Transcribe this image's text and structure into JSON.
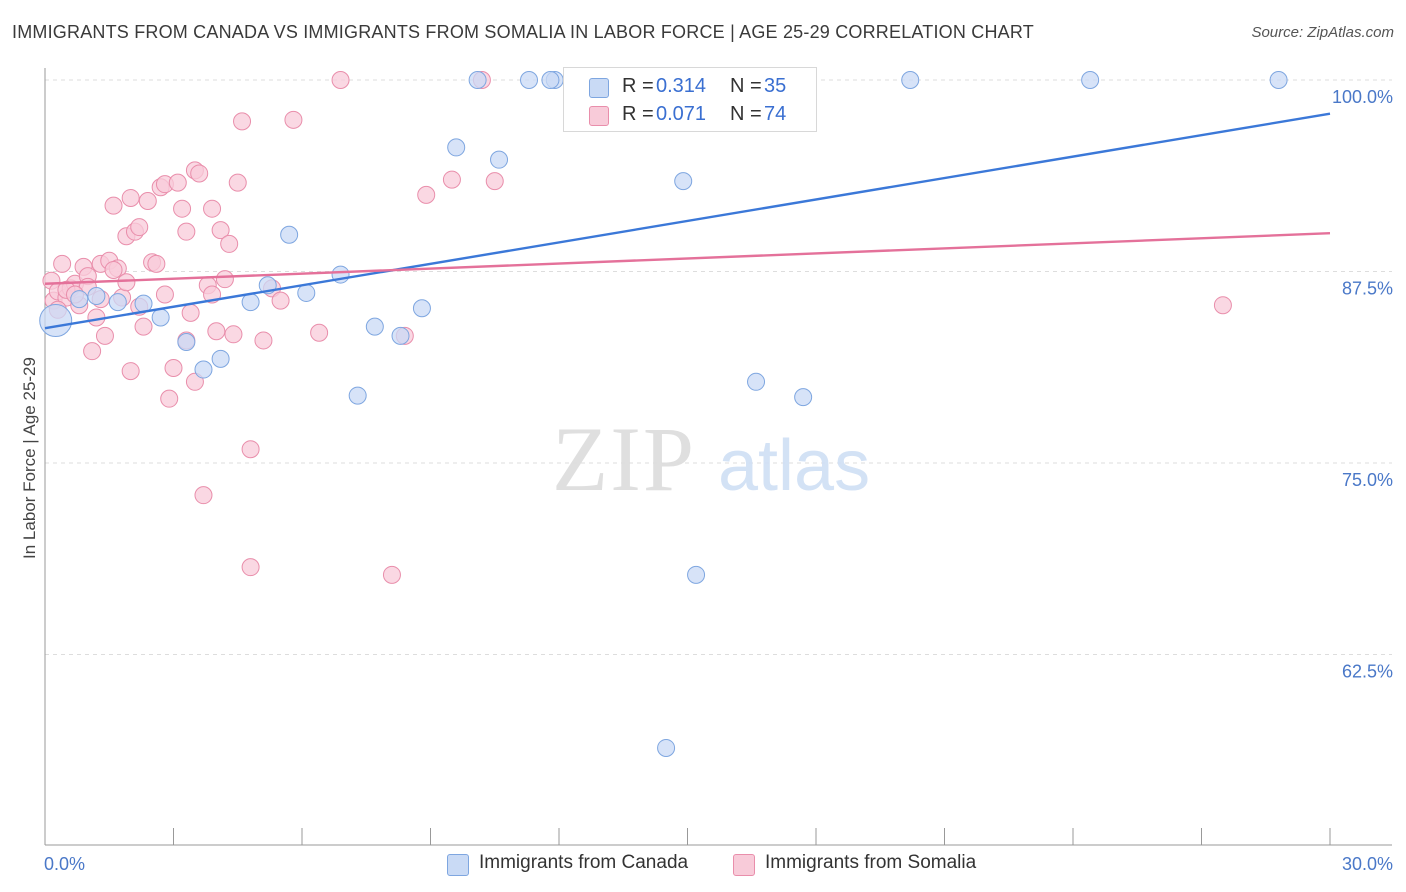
{
  "title": "IMMIGRANTS FROM CANADA VS IMMIGRANTS FROM SOMALIA IN LABOR FORCE | AGE 25-29 CORRELATION CHART",
  "source": "Source: ZipAtlas.com",
  "watermark": {
    "zip": "ZIP",
    "atlas": "atlas"
  },
  "legend": {
    "r_label": "R =",
    "n_label": "N =",
    "canada": {
      "r": "0.314",
      "n": "35"
    },
    "somalia": {
      "r": "0.071",
      "n": "74"
    }
  },
  "colors": {
    "canada_fill": "#c9daf5",
    "canada_stroke": "#7ea6e0",
    "canada_line": "#3b78d8",
    "somalia_fill": "#f8cbd9",
    "somalia_stroke": "#e98eab",
    "somalia_line": "#e4719a",
    "tick_text": "#4a78c8"
  },
  "chart_data": {
    "type": "scatter",
    "title": "IMMIGRANTS FROM CANADA VS IMMIGRANTS FROM SOMALIA IN LABOR FORCE | AGE 25-29 CORRELATION CHART",
    "xlabel": "",
    "ylabel": "In Labor Force | Age 25-29",
    "xlim": [
      0,
      30
    ],
    "ylim": [
      50,
      101.5
    ],
    "x_tick_labels": [
      "0.0%",
      "30.0%"
    ],
    "y_ticks": [
      62.5,
      75.0,
      87.5,
      100.0
    ],
    "y_tick_labels": [
      "62.5%",
      "75.0%",
      "87.5%",
      "100.0%"
    ],
    "grid": true,
    "legend_position": "top-center and bottom",
    "series": [
      {
        "name": "Immigrants from Canada",
        "trend": {
          "x0": 0,
          "y0": 83.8,
          "x1": 30,
          "y1": 97.8
        },
        "points": [
          {
            "x": 0.25,
            "y": 84.3,
            "big": true
          },
          {
            "x": 0.8,
            "y": 85.7
          },
          {
            "x": 1.2,
            "y": 85.9
          },
          {
            "x": 1.7,
            "y": 85.5
          },
          {
            "x": 2.3,
            "y": 85.4
          },
          {
            "x": 2.7,
            "y": 84.5
          },
          {
            "x": 3.3,
            "y": 82.9
          },
          {
            "x": 3.7,
            "y": 81.1
          },
          {
            "x": 4.1,
            "y": 81.8
          },
          {
            "x": 4.8,
            "y": 85.5
          },
          {
            "x": 5.2,
            "y": 86.6
          },
          {
            "x": 5.7,
            "y": 89.9
          },
          {
            "x": 6.1,
            "y": 86.1
          },
          {
            "x": 6.9,
            "y": 87.3
          },
          {
            "x": 7.3,
            "y": 79.4
          },
          {
            "x": 7.7,
            "y": 83.9
          },
          {
            "x": 8.3,
            "y": 83.3
          },
          {
            "x": 8.8,
            "y": 85.1
          },
          {
            "x": 9.6,
            "y": 95.6
          },
          {
            "x": 10.1,
            "y": 100.0
          },
          {
            "x": 10.6,
            "y": 94.8
          },
          {
            "x": 11.3,
            "y": 100.0
          },
          {
            "x": 11.9,
            "y": 100.0
          },
          {
            "x": 12.3,
            "y": 100.0
          },
          {
            "x": 13.3,
            "y": 100.0
          },
          {
            "x": 14.5,
            "y": 56.4
          },
          {
            "x": 14.9,
            "y": 93.4
          },
          {
            "x": 15.2,
            "y": 67.7
          },
          {
            "x": 16.3,
            "y": 100.0
          },
          {
            "x": 16.6,
            "y": 80.3
          },
          {
            "x": 17.7,
            "y": 79.3
          },
          {
            "x": 20.2,
            "y": 100.0
          },
          {
            "x": 24.4,
            "y": 100.0
          },
          {
            "x": 28.8,
            "y": 100.0
          },
          {
            "x": 11.8,
            "y": 100.0
          }
        ]
      },
      {
        "name": "Immigrants from Somalia",
        "trend": {
          "x0": 0,
          "y0": 86.7,
          "x1": 30,
          "y1": 90.0
        },
        "points": [
          {
            "x": 0.15,
            "y": 86.9
          },
          {
            "x": 0.2,
            "y": 85.6
          },
          {
            "x": 0.3,
            "y": 86.2
          },
          {
            "x": 0.4,
            "y": 88.0
          },
          {
            "x": 0.5,
            "y": 85.8
          },
          {
            "x": 0.6,
            "y": 86.4
          },
          {
            "x": 0.7,
            "y": 86.7
          },
          {
            "x": 0.8,
            "y": 85.3
          },
          {
            "x": 0.9,
            "y": 87.8
          },
          {
            "x": 1.0,
            "y": 87.2
          },
          {
            "x": 1.1,
            "y": 82.3
          },
          {
            "x": 1.2,
            "y": 84.5
          },
          {
            "x": 1.3,
            "y": 88.0
          },
          {
            "x": 1.4,
            "y": 83.3
          },
          {
            "x": 1.5,
            "y": 88.2
          },
          {
            "x": 1.6,
            "y": 91.8
          },
          {
            "x": 1.7,
            "y": 87.7
          },
          {
            "x": 1.8,
            "y": 85.8
          },
          {
            "x": 1.9,
            "y": 89.8
          },
          {
            "x": 1.9,
            "y": 86.8
          },
          {
            "x": 2.0,
            "y": 92.3
          },
          {
            "x": 2.0,
            "y": 81.0
          },
          {
            "x": 2.1,
            "y": 90.1
          },
          {
            "x": 2.2,
            "y": 90.4
          },
          {
            "x": 2.3,
            "y": 83.9
          },
          {
            "x": 2.4,
            "y": 92.1
          },
          {
            "x": 2.5,
            "y": 88.1
          },
          {
            "x": 2.6,
            "y": 88.0
          },
          {
            "x": 2.7,
            "y": 93.0
          },
          {
            "x": 2.8,
            "y": 86.0
          },
          {
            "x": 2.8,
            "y": 93.2
          },
          {
            "x": 2.9,
            "y": 79.2
          },
          {
            "x": 3.0,
            "y": 81.2
          },
          {
            "x": 3.1,
            "y": 93.3
          },
          {
            "x": 3.2,
            "y": 91.6
          },
          {
            "x": 3.3,
            "y": 90.1
          },
          {
            "x": 3.3,
            "y": 83.0
          },
          {
            "x": 3.4,
            "y": 84.8
          },
          {
            "x": 3.5,
            "y": 80.3
          },
          {
            "x": 3.5,
            "y": 94.1
          },
          {
            "x": 3.6,
            "y": 93.9
          },
          {
            "x": 3.7,
            "y": 72.9
          },
          {
            "x": 3.8,
            "y": 86.6
          },
          {
            "x": 3.9,
            "y": 91.6
          },
          {
            "x": 3.9,
            "y": 86.0
          },
          {
            "x": 4.0,
            "y": 83.6
          },
          {
            "x": 4.1,
            "y": 90.2
          },
          {
            "x": 4.2,
            "y": 87.0
          },
          {
            "x": 4.3,
            "y": 89.3
          },
          {
            "x": 4.4,
            "y": 83.4
          },
          {
            "x": 4.5,
            "y": 93.3
          },
          {
            "x": 4.6,
            "y": 97.3
          },
          {
            "x": 4.8,
            "y": 75.9
          },
          {
            "x": 4.8,
            "y": 68.2
          },
          {
            "x": 5.1,
            "y": 83.0
          },
          {
            "x": 5.3,
            "y": 86.4
          },
          {
            "x": 5.5,
            "y": 85.6
          },
          {
            "x": 5.8,
            "y": 97.4
          },
          {
            "x": 6.4,
            "y": 83.5
          },
          {
            "x": 6.9,
            "y": 100.0
          },
          {
            "x": 8.1,
            "y": 67.7
          },
          {
            "x": 8.4,
            "y": 83.3
          },
          {
            "x": 8.9,
            "y": 92.5
          },
          {
            "x": 9.5,
            "y": 93.5
          },
          {
            "x": 10.2,
            "y": 100.0
          },
          {
            "x": 10.5,
            "y": 93.4
          },
          {
            "x": 27.5,
            "y": 85.3
          },
          {
            "x": 0.5,
            "y": 86.3
          },
          {
            "x": 1.0,
            "y": 86.5
          },
          {
            "x": 1.3,
            "y": 85.7
          },
          {
            "x": 2.2,
            "y": 85.2
          },
          {
            "x": 0.3,
            "y": 85.0
          },
          {
            "x": 0.7,
            "y": 86.0
          },
          {
            "x": 1.6,
            "y": 87.6
          }
        ]
      }
    ]
  }
}
